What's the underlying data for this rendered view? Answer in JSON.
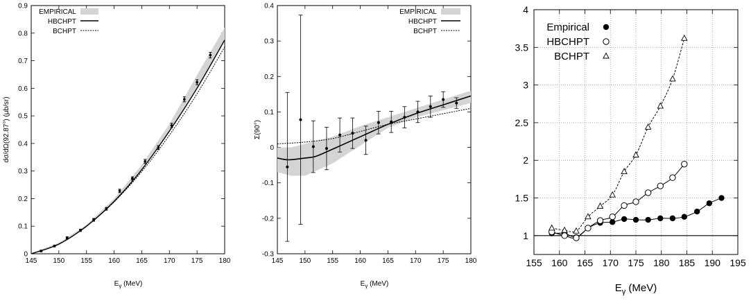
{
  "chart_data": [
    {
      "type": "line",
      "xlabel": "E",
      "xlabel_sub": "γ",
      "xlabel_unit": " (MeV)",
      "ylabel": "dσ/dΩ(92.87°) (μb/sr)",
      "xlim": [
        145,
        180
      ],
      "ylim": [
        0,
        0.9
      ],
      "xticks": [
        145,
        150,
        155,
        160,
        165,
        170,
        175,
        180
      ],
      "yticks": [
        0,
        0.1,
        0.2,
        0.3,
        0.4,
        0.5,
        0.6,
        0.7,
        0.8,
        0.9
      ],
      "legend": [
        "EMPIRICAL",
        "HBCHPT",
        "BCHPT"
      ],
      "data_points": {
        "x": [
          146.8,
          149.2,
          151.5,
          153.9,
          156.3,
          158.6,
          161.0,
          163.3,
          165.6,
          168.0,
          170.4,
          172.7,
          175.0,
          177.4
        ],
        "y": [
          0.01,
          0.028,
          0.058,
          0.085,
          0.123,
          0.163,
          0.228,
          0.273,
          0.335,
          0.385,
          0.465,
          0.56,
          0.622,
          0.72
        ],
        "err": [
          0.003,
          0.003,
          0.004,
          0.004,
          0.005,
          0.005,
          0.006,
          0.006,
          0.007,
          0.007,
          0.008,
          0.009,
          0.009,
          0.01
        ]
      },
      "empirical_band": {
        "x": [
          145,
          150,
          155,
          160,
          165,
          170,
          175,
          180
        ],
        "low": [
          0.0,
          0.034,
          0.095,
          0.184,
          0.3,
          0.44,
          0.6,
          0.775
        ],
        "high": [
          0.002,
          0.04,
          0.105,
          0.2,
          0.322,
          0.47,
          0.648,
          0.82
        ]
      },
      "series": [
        {
          "name": "HBCHPT",
          "x": [
            145,
            150,
            155,
            160,
            165,
            170,
            175,
            180
          ],
          "y": [
            0.0,
            0.035,
            0.1,
            0.19,
            0.305,
            0.445,
            0.6,
            0.775
          ]
        },
        {
          "name": "BCHPT",
          "x": [
            145,
            150,
            155,
            160,
            165,
            170,
            175,
            180
          ],
          "y": [
            0.0,
            0.036,
            0.1,
            0.188,
            0.298,
            0.43,
            0.58,
            0.75
          ]
        }
      ]
    },
    {
      "type": "line",
      "xlabel": "E",
      "xlabel_sub": "γ",
      "xlabel_unit": " (MeV)",
      "ylabel": "Σ(90°)",
      "xlim": [
        145,
        180
      ],
      "ylim": [
        -0.3,
        0.4
      ],
      "xticks": [
        145,
        150,
        155,
        160,
        165,
        170,
        175,
        180
      ],
      "yticks": [
        -0.3,
        -0.2,
        -0.1,
        0,
        0.1,
        0.2,
        0.3,
        0.4
      ],
      "legend": [
        "EMPIRICAL",
        "HBCHPT",
        "BCHPT"
      ],
      "data_points": {
        "x": [
          146.8,
          149.2,
          151.5,
          153.9,
          156.3,
          158.6,
          161.0,
          163.3,
          165.6,
          168.0,
          170.4,
          172.7,
          175.0,
          177.4
        ],
        "y": [
          -0.055,
          0.078,
          0.002,
          -0.003,
          0.035,
          0.04,
          0.02,
          0.07,
          0.072,
          0.085,
          0.1,
          0.115,
          0.135,
          0.125
        ],
        "err": [
          0.21,
          0.295,
          0.073,
          0.06,
          0.048,
          0.043,
          0.04,
          0.032,
          0.03,
          0.03,
          0.03,
          0.03,
          0.022,
          0.015
        ]
      },
      "empirical_band": {
        "x": [
          145,
          147.5,
          150,
          155,
          160,
          165,
          170,
          175,
          180
        ],
        "low": [
          -0.07,
          -0.08,
          -0.08,
          -0.045,
          0.005,
          0.055,
          0.085,
          0.105,
          0.125
        ],
        "high": [
          0.0,
          0.0,
          0.01,
          0.03,
          0.06,
          0.085,
          0.11,
          0.135,
          0.16
        ]
      },
      "series": [
        {
          "name": "HBCHPT",
          "x": [
            145,
            147,
            150,
            152,
            155,
            160,
            165,
            170,
            175,
            180
          ],
          "y": [
            -0.03,
            -0.035,
            -0.03,
            -0.025,
            -0.005,
            0.03,
            0.065,
            0.095,
            0.12,
            0.145
          ]
        },
        {
          "name": "BCHPT",
          "x": [
            145,
            150,
            155,
            160,
            165,
            170,
            175,
            180
          ],
          "y": [
            0.01,
            0.015,
            0.025,
            0.045,
            0.065,
            0.08,
            0.095,
            0.11
          ]
        }
      ]
    },
    {
      "type": "line",
      "xlabel": "E",
      "xlabel_sub": "γ",
      "xlabel_unit": " (MeV)",
      "ylabel": "",
      "xlim": [
        155,
        195
      ],
      "ylim": [
        0.75,
        4
      ],
      "xticks": [
        155,
        160,
        165,
        170,
        175,
        180,
        185,
        190,
        195
      ],
      "yticks": [
        1,
        1.5,
        2,
        2.5,
        3,
        3.5,
        4
      ],
      "grid": true,
      "reference_line": 1,
      "legend": [
        "Empirical",
        "HBCHPT",
        "BCHPT"
      ],
      "series": [
        {
          "name": "Empirical",
          "marker": "filled-circle",
          "line": "solid",
          "x": [
            158.5,
            161.0,
            163.3,
            165.6,
            168.0,
            170.4,
            172.7,
            175.0,
            177.4,
            179.8,
            182.2,
            184.5,
            187.0,
            189.4,
            191.8
          ],
          "y": [
            1.03,
            1.03,
            0.98,
            1.1,
            1.17,
            1.18,
            1.22,
            1.21,
            1.21,
            1.23,
            1.23,
            1.25,
            1.32,
            1.43,
            1.5
          ]
        },
        {
          "name": "HBCHPT",
          "marker": "open-circle",
          "line": "solid",
          "x": [
            158.5,
            161.0,
            163.3,
            165.6,
            168.0,
            170.4,
            172.7,
            175.0,
            177.4,
            179.8,
            182.2,
            184.5
          ],
          "y": [
            1.05,
            1.0,
            0.97,
            1.1,
            1.2,
            1.25,
            1.4,
            1.45,
            1.57,
            1.66,
            1.77,
            1.95
          ]
        },
        {
          "name": "BCHPT",
          "marker": "open-triangle",
          "line": "dashed",
          "x": [
            158.5,
            161.0,
            163.3,
            165.6,
            168.0,
            170.4,
            172.7,
            175.0,
            177.4,
            179.8,
            182.2,
            184.5
          ],
          "y": [
            1.1,
            1.07,
            1.06,
            1.25,
            1.39,
            1.54,
            1.85,
            2.07,
            2.44,
            2.72,
            3.08,
            3.62
          ]
        }
      ]
    }
  ]
}
